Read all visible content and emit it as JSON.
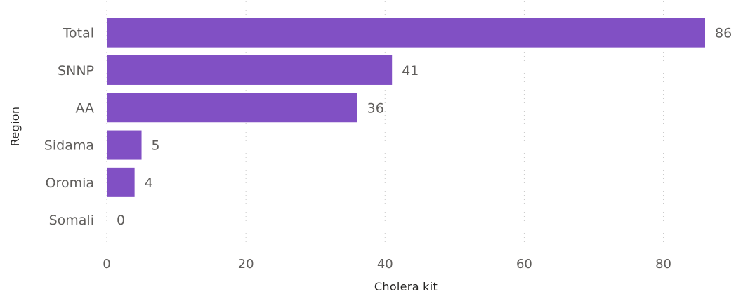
{
  "chart_data": {
    "type": "bar",
    "orientation": "horizontal",
    "categories": [
      "Total",
      "SNNP",
      "AA",
      "Sidama",
      "Oromia",
      "Somali"
    ],
    "values": [
      86,
      41,
      36,
      5,
      4,
      0
    ],
    "data_labels": [
      "86",
      "41",
      "36",
      "5",
      "4",
      "0"
    ],
    "xlabel": "Cholera kit",
    "ylabel": "Region",
    "xlim": [
      0,
      86
    ],
    "xticks": [
      0,
      20,
      40,
      60,
      80
    ],
    "xtick_labels": [
      "0",
      "20",
      "40",
      "60",
      "80"
    ],
    "grid": "vertical-dotted",
    "legend": "none",
    "bar_color": "#8150c4"
  }
}
